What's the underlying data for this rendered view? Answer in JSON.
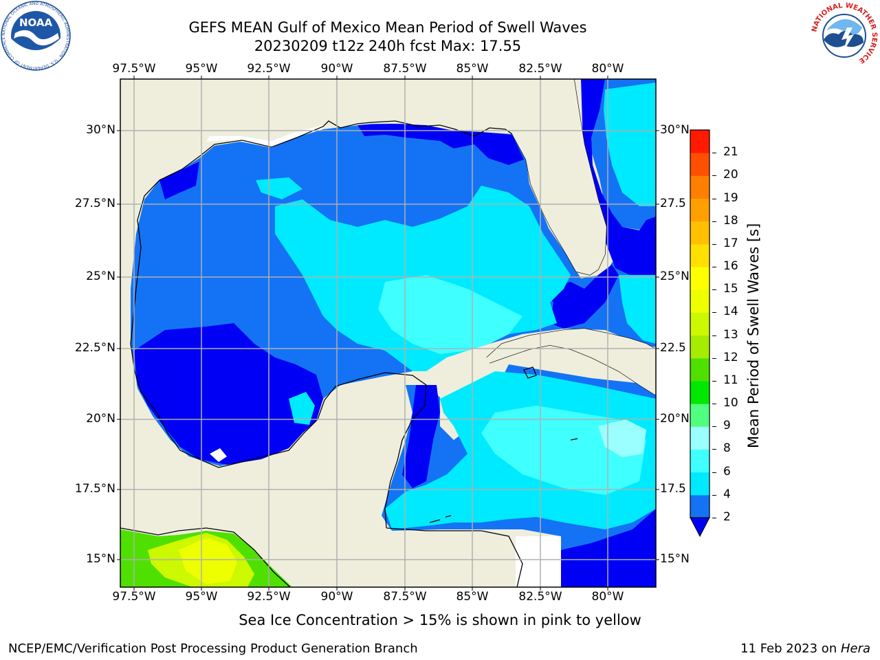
{
  "header": {
    "title_line1": "GEFS MEAN Gulf of Mexico Mean Period of Swell Waves",
    "title_line2": "20230209 t12z 240h fcst   Max: 17.55"
  },
  "logos": {
    "left": "NOAA",
    "left_ring_text": "NATIONAL OCEANIC AND ATMOSPHERIC ADMINISTRATION · U.S. DEPARTMENT OF COMMERCE",
    "right_ring_text": "NATIONAL WEATHER SERVICE"
  },
  "map": {
    "lon_ticks": [
      "97.5°W",
      "95°W",
      "92.5°W",
      "90°W",
      "87.5°W",
      "85°W",
      "82.5°W",
      "80°W"
    ],
    "lat_ticks_left": [
      "30°N",
      "27.5°N",
      "25°N",
      "22.5°N",
      "20°N",
      "17.5°N",
      "15°N"
    ],
    "lat_ticks_right": [
      "30°N",
      "27.5",
      "25°N",
      "22.5",
      "20°N",
      "17.5",
      "15°N"
    ],
    "colors": {
      "land": "#efeedd",
      "water_dark": "#0000f5",
      "water_mid": "#1473f5",
      "water_light": "#00eaff",
      "grid": "#b0b0b0"
    }
  },
  "colorbar": {
    "label": "Mean Period of Swell Waves [s]",
    "ticks": [
      "2",
      "4",
      "6",
      "8",
      "9",
      "10",
      "11",
      "12",
      "13",
      "14",
      "15",
      "16",
      "17",
      "18",
      "19",
      "20",
      "21"
    ],
    "colors": [
      "#1473f5",
      "#00eaff",
      "#40ffff",
      "#9bffff",
      "#50ff80",
      "#00e800",
      "#4fe000",
      "#a6ec00",
      "#ccf800",
      "#eeff00",
      "#ffff00",
      "#ffe000",
      "#ffc000",
      "#ffa000",
      "#ff7f00",
      "#ff4f00",
      "#ff1a00"
    ],
    "under_color": "#0000f5"
  },
  "footer": {
    "ice_note": "Sea Ice Concentration > 15% is shown in pink to yellow",
    "credit": "NCEP/EMC/Verification Post Processing Product Generation Branch",
    "date": "11 Feb 2023 on ",
    "machine": "Hera"
  }
}
